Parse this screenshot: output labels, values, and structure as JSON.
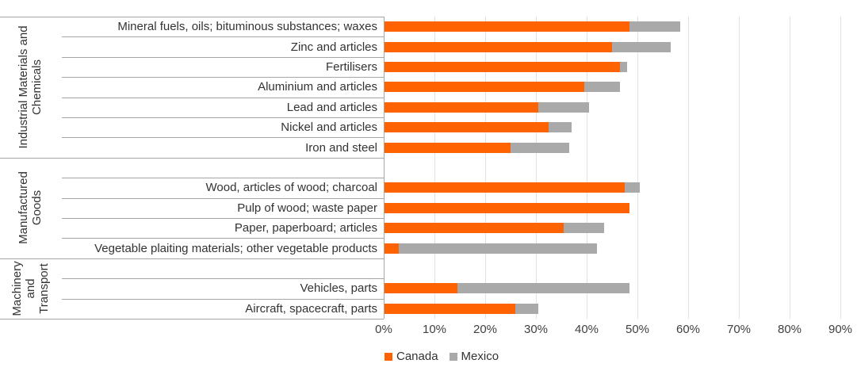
{
  "chart_data": {
    "type": "bar",
    "stacked": true,
    "orientation": "horizontal",
    "unit": "%",
    "title": "",
    "series": [
      {
        "name": "Canada",
        "color": "#FF6200"
      },
      {
        "name": "Mexico",
        "color": "#A9A9A9"
      }
    ],
    "x_axis": {
      "min": 0,
      "max": 90,
      "tick_values": [
        0,
        10,
        20,
        30,
        40,
        50,
        60,
        70,
        80,
        90
      ],
      "tick_labels": [
        "0%",
        "10%",
        "20%",
        "30%",
        "40%",
        "50%",
        "60%",
        "70%",
        "80%",
        "90%"
      ],
      "gridlines": true
    },
    "legend": {
      "position": "bottom-left",
      "entries": [
        "Canada",
        "Mexico"
      ]
    },
    "groups": [
      {
        "label": "Industrial Materials and\nChemicals",
        "leading_empty_rows": 0,
        "items": [
          {
            "label": "Mineral fuels, oils; bituminous substances; waxes",
            "Canada": 48.5,
            "Mexico": 10
          },
          {
            "label": "Zinc and articles",
            "Canada": 45,
            "Mexico": 11.5
          },
          {
            "label": "Fertilisers",
            "Canada": 46.5,
            "Mexico": 1.5
          },
          {
            "label": "Aluminium and articles",
            "Canada": 39.5,
            "Mexico": 7
          },
          {
            "label": "Lead and articles",
            "Canada": 30.5,
            "Mexico": 10
          },
          {
            "label": "Nickel and articles",
            "Canada": 32.5,
            "Mexico": 4.5
          },
          {
            "label": "Iron and steel",
            "Canada": 25,
            "Mexico": 11.5
          }
        ]
      },
      {
        "label": "Manufactured\nGoods",
        "leading_empty_rows": 1,
        "items": [
          {
            "label": "Wood, articles of wood; charcoal",
            "Canada": 47.5,
            "Mexico": 3
          },
          {
            "label": "Pulp of wood; waste paper",
            "Canada": 48.5,
            "Mexico": 0
          },
          {
            "label": "Paper, paperboard; articles",
            "Canada": 35.5,
            "Mexico": 8
          },
          {
            "label": "Vegetable plaiting materials; other vegetable products",
            "Canada": 3,
            "Mexico": 39
          }
        ]
      },
      {
        "label": "Machinery\nand\nTransport",
        "leading_empty_rows": 1,
        "items": [
          {
            "label": "Vehicles, parts",
            "Canada": 14.5,
            "Mexico": 34
          },
          {
            "label": "Aircraft, spacecraft, parts",
            "Canada": 26,
            "Mexico": 4.5
          }
        ]
      }
    ]
  }
}
